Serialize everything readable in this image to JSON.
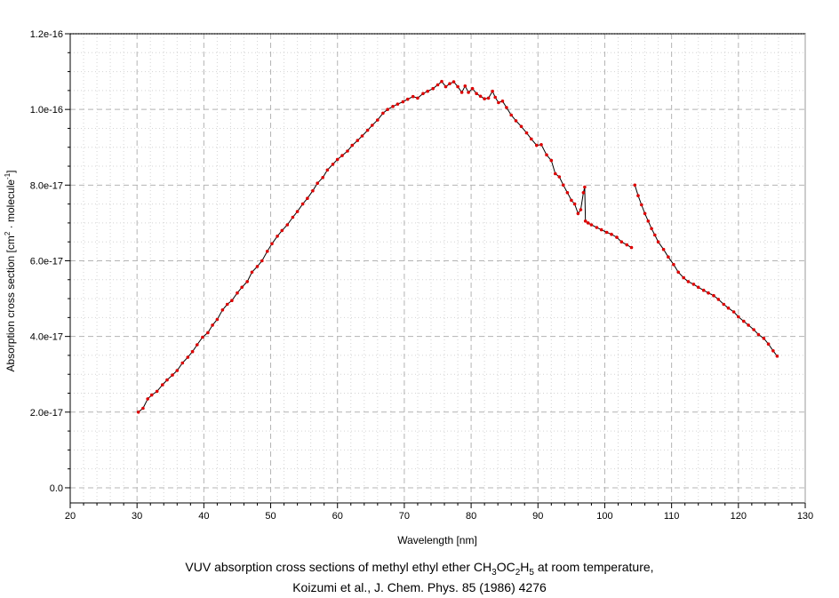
{
  "chart_data": {
    "type": "line",
    "title": "",
    "xlabel": "Wavelength [nm]",
    "ylabel": "Absorption cross section [cm² · molecule⁻¹]",
    "xlim": [
      20,
      130
    ],
    "ylim": [
      -4e-18,
      1.2e-16
    ],
    "x_ticks": [
      20,
      30,
      40,
      50,
      60,
      70,
      80,
      90,
      100,
      110,
      120,
      130
    ],
    "x_tick_labels": [
      "20",
      "30",
      "40",
      "50",
      "60",
      "70",
      "80",
      "90",
      "100",
      "110",
      "120",
      "130"
    ],
    "y_ticks": [
      0,
      2e-17,
      4e-17,
      6e-17,
      8e-17,
      1e-16,
      1.2e-16
    ],
    "y_tick_labels": [
      "0.0",
      "2.0e-17",
      "4.0e-17",
      "6.0e-17",
      "8.0e-17",
      "1.0e-16",
      "1.2e-16"
    ],
    "grid": true,
    "line_color": "#000000",
    "marker_color": "#dd0000",
    "series": [
      {
        "x": [
          30.2,
          30.9,
          31.6,
          32.2,
          33.0,
          33.8,
          34.5,
          35.3,
          36.0,
          36.8,
          37.6,
          38.3,
          39.0,
          39.8,
          40.6,
          41.3,
          42.0,
          42.8,
          43.5,
          44.2,
          45.0,
          45.7,
          46.5,
          47.2,
          48.0,
          48.7,
          49.5,
          50.2,
          51.0,
          51.7,
          52.5,
          53.3,
          54.0,
          54.8,
          55.5,
          56.3,
          57.0,
          57.8,
          58.5,
          59.3,
          60.0,
          60.7,
          61.5,
          62.2,
          63.0,
          63.7,
          64.5,
          65.2,
          66.0,
          66.8,
          67.5,
          68.3,
          69.0,
          69.8,
          70.5,
          71.3,
          72.0,
          72.8,
          73.5,
          74.3,
          75.0,
          75.6,
          76.2,
          76.8,
          77.4,
          78.0,
          78.6,
          79.1,
          79.6,
          80.2,
          80.8,
          81.4,
          82.0,
          82.6,
          83.2,
          83.6,
          84.1,
          84.7,
          85.3,
          86.0,
          86.7,
          87.5,
          88.3,
          89.0,
          89.8,
          90.5,
          91.3,
          92.0,
          92.6,
          93.2,
          93.8,
          94.4,
          95.0,
          95.5,
          96.0,
          96.4,
          96.8,
          97.0,
          97.1,
          97.5,
          98.0,
          98.8,
          99.5,
          100.3,
          101.0,
          101.8,
          102.5,
          103.3,
          104.0
        ],
        "y": [
          2e-17,
          2.1e-17,
          2.35e-17,
          2.45e-17,
          2.55e-17,
          2.72e-17,
          2.85e-17,
          2.98e-17,
          3.1e-17,
          3.3e-17,
          3.45e-17,
          3.6e-17,
          3.78e-17,
          3.98e-17,
          4.1e-17,
          4.3e-17,
          4.45e-17,
          4.7e-17,
          4.85e-17,
          4.95e-17,
          5.15e-17,
          5.3e-17,
          5.45e-17,
          5.7e-17,
          5.85e-17,
          6e-17,
          6.25e-17,
          6.45e-17,
          6.65e-17,
          6.8e-17,
          6.95e-17,
          7.15e-17,
          7.3e-17,
          7.5e-17,
          7.65e-17,
          7.85e-17,
          8.05e-17,
          8.2e-17,
          8.4e-17,
          8.55e-17,
          8.68e-17,
          8.78e-17,
          8.9e-17,
          9.05e-17,
          9.18e-17,
          9.3e-17,
          9.45e-17,
          9.58e-17,
          9.72e-17,
          9.9e-17,
          1e-16,
          1.008e-16,
          1.014e-16,
          1.02e-16,
          1.027e-16,
          1.034e-16,
          1.03e-16,
          1.042e-16,
          1.048e-16,
          1.055e-16,
          1.065e-16,
          1.074e-16,
          1.06e-16,
          1.068e-16,
          1.073e-16,
          1.06e-16,
          1.045e-16,
          1.062e-16,
          1.045e-16,
          1.055e-16,
          1.042e-16,
          1.035e-16,
          1.028e-16,
          1.03e-16,
          1.048e-16,
          1.032e-16,
          1.018e-16,
          1.022e-16,
          1.005e-16,
          9.85e-17,
          9.7e-17,
          9.55e-17,
          9.38e-17,
          9.22e-17,
          9.05e-17,
          9.07e-17,
          8.8e-17,
          8.65e-17,
          8.3e-17,
          8.22e-17,
          8e-17,
          7.8e-17,
          7.6e-17,
          7.5e-17,
          7.25e-17,
          7.35e-17,
          7.8e-17,
          7.95e-17,
          7.05e-17,
          7e-17,
          6.95e-17,
          6.88e-17,
          6.82e-17,
          6.75e-17,
          6.7e-17,
          6.62e-17,
          6.5e-17,
          6.42e-17,
          6.35e-17
        ]
      },
      {
        "x": [
          104.5,
          105.0,
          105.5,
          106.0,
          106.5,
          107.0,
          107.5,
          108.0,
          108.8,
          109.5,
          110.3,
          111.0,
          111.8,
          112.5,
          113.3,
          114.0,
          114.8,
          115.5,
          116.3,
          117.0,
          117.8,
          118.5,
          119.3,
          120.0,
          120.8,
          121.5,
          122.3,
          123.0,
          123.8,
          124.5,
          125.2,
          125.8
        ],
        "y": [
          8e-17,
          7.72e-17,
          7.48e-17,
          7.25e-17,
          7.05e-17,
          6.85e-17,
          6.68e-17,
          6.5e-17,
          6.3e-17,
          6.1e-17,
          5.9e-17,
          5.7e-17,
          5.55e-17,
          5.45e-17,
          5.38e-17,
          5.3e-17,
          5.22e-17,
          5.15e-17,
          5.08e-17,
          4.98e-17,
          4.85e-17,
          4.75e-17,
          4.65e-17,
          4.52e-17,
          4.4e-17,
          4.3e-17,
          4.18e-17,
          4.05e-17,
          3.95e-17,
          3.8e-17,
          3.62e-17,
          3.48e-17
        ]
      }
    ]
  },
  "caption": {
    "line1": {
      "prefix": "VUV absorption cross sections of methyl ethyl ether CH",
      "sub1": "3",
      "mid1": "OC",
      "sub2": "2",
      "mid2": "H",
      "sub3": "5",
      "suffix": " at room temperature,"
    },
    "line2": "Koizumi et al., J. Chem. Phys. 85 (1986) 4276"
  }
}
